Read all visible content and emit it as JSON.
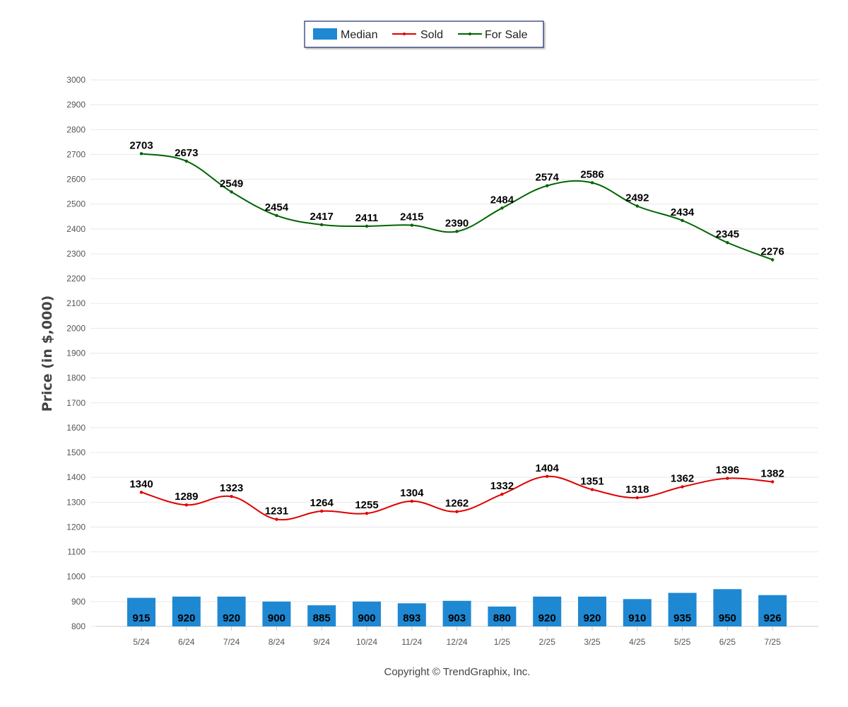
{
  "chart_data": {
    "type": "bar",
    "categories": [
      "5/24",
      "6/24",
      "7/24",
      "8/24",
      "9/24",
      "10/24",
      "11/24",
      "12/24",
      "1/25",
      "2/25",
      "3/25",
      "4/25",
      "5/25",
      "6/25",
      "7/25"
    ],
    "series": [
      {
        "name": "Median",
        "kind": "bar",
        "color": "#1f88d2",
        "values": [
          915,
          920,
          920,
          900,
          885,
          900,
          893,
          903,
          880,
          920,
          920,
          910,
          935,
          950,
          926
        ]
      },
      {
        "name": "Sold",
        "kind": "line",
        "color": "#e00000",
        "values": [
          1340,
          1289,
          1323,
          1231,
          1264,
          1255,
          1304,
          1262,
          1332,
          1404,
          1351,
          1318,
          1362,
          1396,
          1382
        ]
      },
      {
        "name": "For Sale",
        "kind": "line",
        "color": "#006400",
        "values": [
          2703,
          2673,
          2549,
          2454,
          2417,
          2411,
          2415,
          2390,
          2484,
          2574,
          2586,
          2492,
          2434,
          2345,
          2276
        ]
      }
    ],
    "ylabel": "Price (in $,000)",
    "xlabel": "",
    "ylim": [
      800,
      3000
    ],
    "yticks": [
      "3000",
      "2900",
      "2800",
      "2700",
      "2600",
      "2500",
      "2400",
      "2300",
      "2200",
      "2100",
      "2000",
      "1900",
      "1800",
      "1700",
      "1600",
      "1500",
      "1400",
      "1300",
      "1200",
      "1100",
      "1000",
      "900",
      "800"
    ],
    "grid": true,
    "legend_position": "top-center"
  },
  "footer": {
    "copyright": "Copyright © TrendGraphix, Inc."
  }
}
